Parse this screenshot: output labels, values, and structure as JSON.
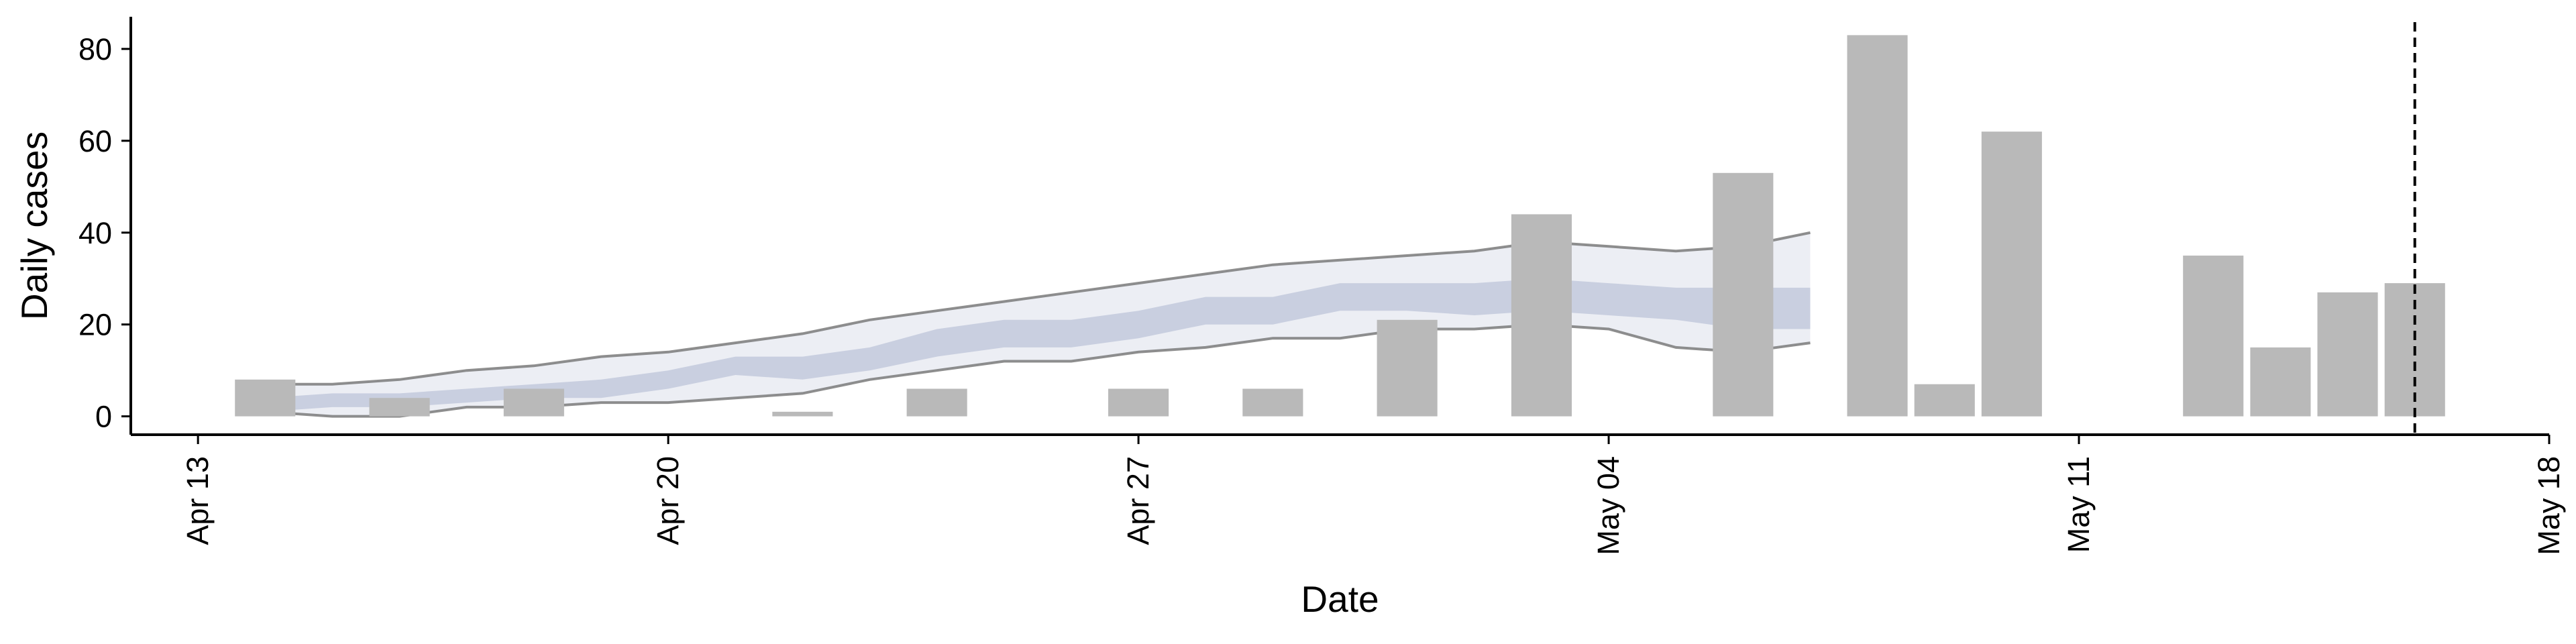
{
  "chart_data": {
    "type": "bar",
    "title": "",
    "xlabel": "Date",
    "ylabel": "Daily cases",
    "ylim": [
      -4,
      87
    ],
    "y_ticks": [
      0,
      20,
      40,
      60,
      80
    ],
    "x_ticks": [
      {
        "date": "2020-04-13",
        "label": "Apr 13"
      },
      {
        "date": "2020-04-20",
        "label": "Apr 20"
      },
      {
        "date": "2020-04-27",
        "label": "Apr 27"
      },
      {
        "date": "2020-05-04",
        "label": "May 04"
      },
      {
        "date": "2020-05-11",
        "label": "May 11"
      },
      {
        "date": "2020-05-18",
        "label": "May 18"
      }
    ],
    "xlim": [
      "2020-04-12",
      "2020-05-18"
    ],
    "grid": false,
    "bars": [
      {
        "date": "2020-04-14",
        "value": 8
      },
      {
        "date": "2020-04-16",
        "value": 4
      },
      {
        "date": "2020-04-18",
        "value": 6
      },
      {
        "date": "2020-04-22",
        "value": 1
      },
      {
        "date": "2020-04-24",
        "value": 6
      },
      {
        "date": "2020-04-27",
        "value": 6
      },
      {
        "date": "2020-04-29",
        "value": 6
      },
      {
        "date": "2020-05-01",
        "value": 21
      },
      {
        "date": "2020-05-03",
        "value": 44
      },
      {
        "date": "2020-05-06",
        "value": 53
      },
      {
        "date": "2020-05-08",
        "value": 83
      },
      {
        "date": "2020-05-09",
        "value": 7
      },
      {
        "date": "2020-05-10",
        "value": 62
      },
      {
        "date": "2020-05-13",
        "value": 35
      },
      {
        "date": "2020-05-14",
        "value": 15
      },
      {
        "date": "2020-05-15",
        "value": 27
      },
      {
        "date": "2020-05-16",
        "value": 29
      }
    ],
    "vline_date": "2020-05-16",
    "band": {
      "dates": [
        "2020-04-14",
        "2020-04-15",
        "2020-04-16",
        "2020-04-17",
        "2020-04-18",
        "2020-04-19",
        "2020-04-20",
        "2020-04-21",
        "2020-04-22",
        "2020-04-23",
        "2020-04-24",
        "2020-04-25",
        "2020-04-26",
        "2020-04-27",
        "2020-04-28",
        "2020-04-29",
        "2020-04-30",
        "2020-05-01",
        "2020-05-02",
        "2020-05-03",
        "2020-05-04",
        "2020-05-05",
        "2020-05-06",
        "2020-05-07"
      ],
      "outer_upper": [
        7,
        7,
        8,
        10,
        11,
        13,
        14,
        16,
        18,
        21,
        23,
        25,
        27,
        29,
        31,
        33,
        34,
        35,
        36,
        38,
        37,
        36,
        37,
        40
      ],
      "outer_lower": [
        1,
        0,
        0,
        2,
        2,
        3,
        3,
        4,
        5,
        8,
        10,
        12,
        12,
        14,
        15,
        17,
        17,
        19,
        19,
        20,
        19,
        15,
        14,
        16
      ],
      "inner_upper": [
        4,
        5,
        5,
        6,
        7,
        8,
        10,
        13,
        13,
        15,
        19,
        21,
        21,
        23,
        26,
        26,
        29,
        29,
        29,
        30,
        29,
        28,
        28,
        28
      ],
      "inner_lower": [
        1,
        2,
        2,
        3,
        4,
        4,
        6,
        9,
        8,
        10,
        13,
        15,
        15,
        17,
        20,
        20,
        23,
        23,
        22,
        23,
        22,
        21,
        19,
        19
      ]
    },
    "colors": {
      "bars": "#b9b9b9",
      "outer_band": "#eceef4",
      "inner_band": "#c9cfe0",
      "band_edge": "#7a7a7a",
      "axis": "#000000",
      "vline": "#000000"
    }
  }
}
